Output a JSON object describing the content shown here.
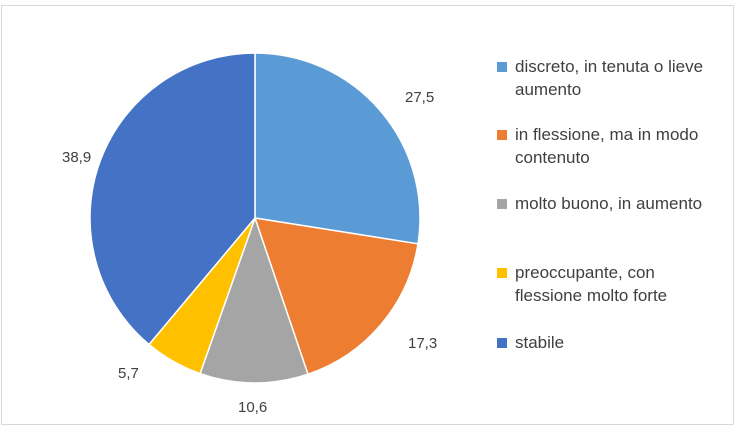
{
  "chart_data": {
    "type": "pie",
    "title": "",
    "start_angle_deg": 0,
    "direction": "clockwise",
    "slices": [
      {
        "label": "discreto, in tenuta o lieve aumento",
        "value": 27.5,
        "value_label": "27,5",
        "color": "#5B9BD5"
      },
      {
        "label": "in flessione, ma in modo contenuto",
        "value": 17.3,
        "value_label": "17,3",
        "color": "#ED7D31"
      },
      {
        "label": "molto buono, in aumento",
        "value": 10.6,
        "value_label": "10,6",
        "color": "#A5A5A5"
      },
      {
        "label": "preoccupante, con flessione molto forte",
        "value": 5.7,
        "value_label": "5,7",
        "color": "#FFC000"
      },
      {
        "label": "stabile",
        "value": 38.9,
        "value_label": "38,9",
        "color": "#4472C4"
      }
    ],
    "legend_position": "right"
  }
}
